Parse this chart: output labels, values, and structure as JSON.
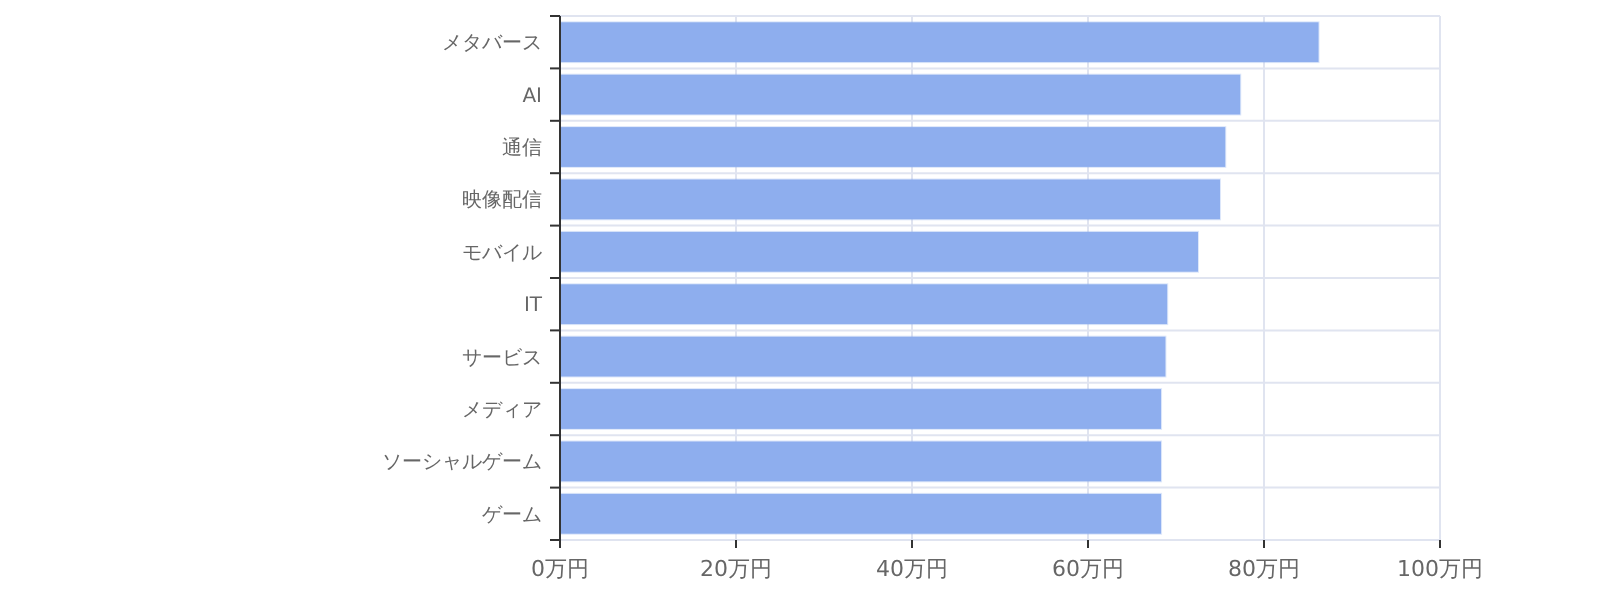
{
  "chart_data": {
    "type": "bar",
    "orientation": "horizontal",
    "categories": [
      "メタバース",
      "AI",
      "通信",
      "映像配信",
      "モバイル",
      "IT",
      "サービス",
      "メディア",
      "ソーシャルゲーム",
      "ゲーム"
    ],
    "values": [
      86.2,
      77.3,
      75.6,
      75.0,
      72.5,
      69.0,
      68.8,
      68.3,
      68.3,
      68.3
    ],
    "color": "#8eaeee",
    "xlim": [
      0,
      100
    ],
    "xticks": [
      {
        "value": 0,
        "label": "0万円"
      },
      {
        "value": 20,
        "label": "20万円"
      },
      {
        "value": 40,
        "label": "40万円"
      },
      {
        "value": 60,
        "label": "60万円"
      },
      {
        "value": 80,
        "label": "80万円"
      },
      {
        "value": 100,
        "label": "100万円"
      }
    ],
    "grid": true
  }
}
